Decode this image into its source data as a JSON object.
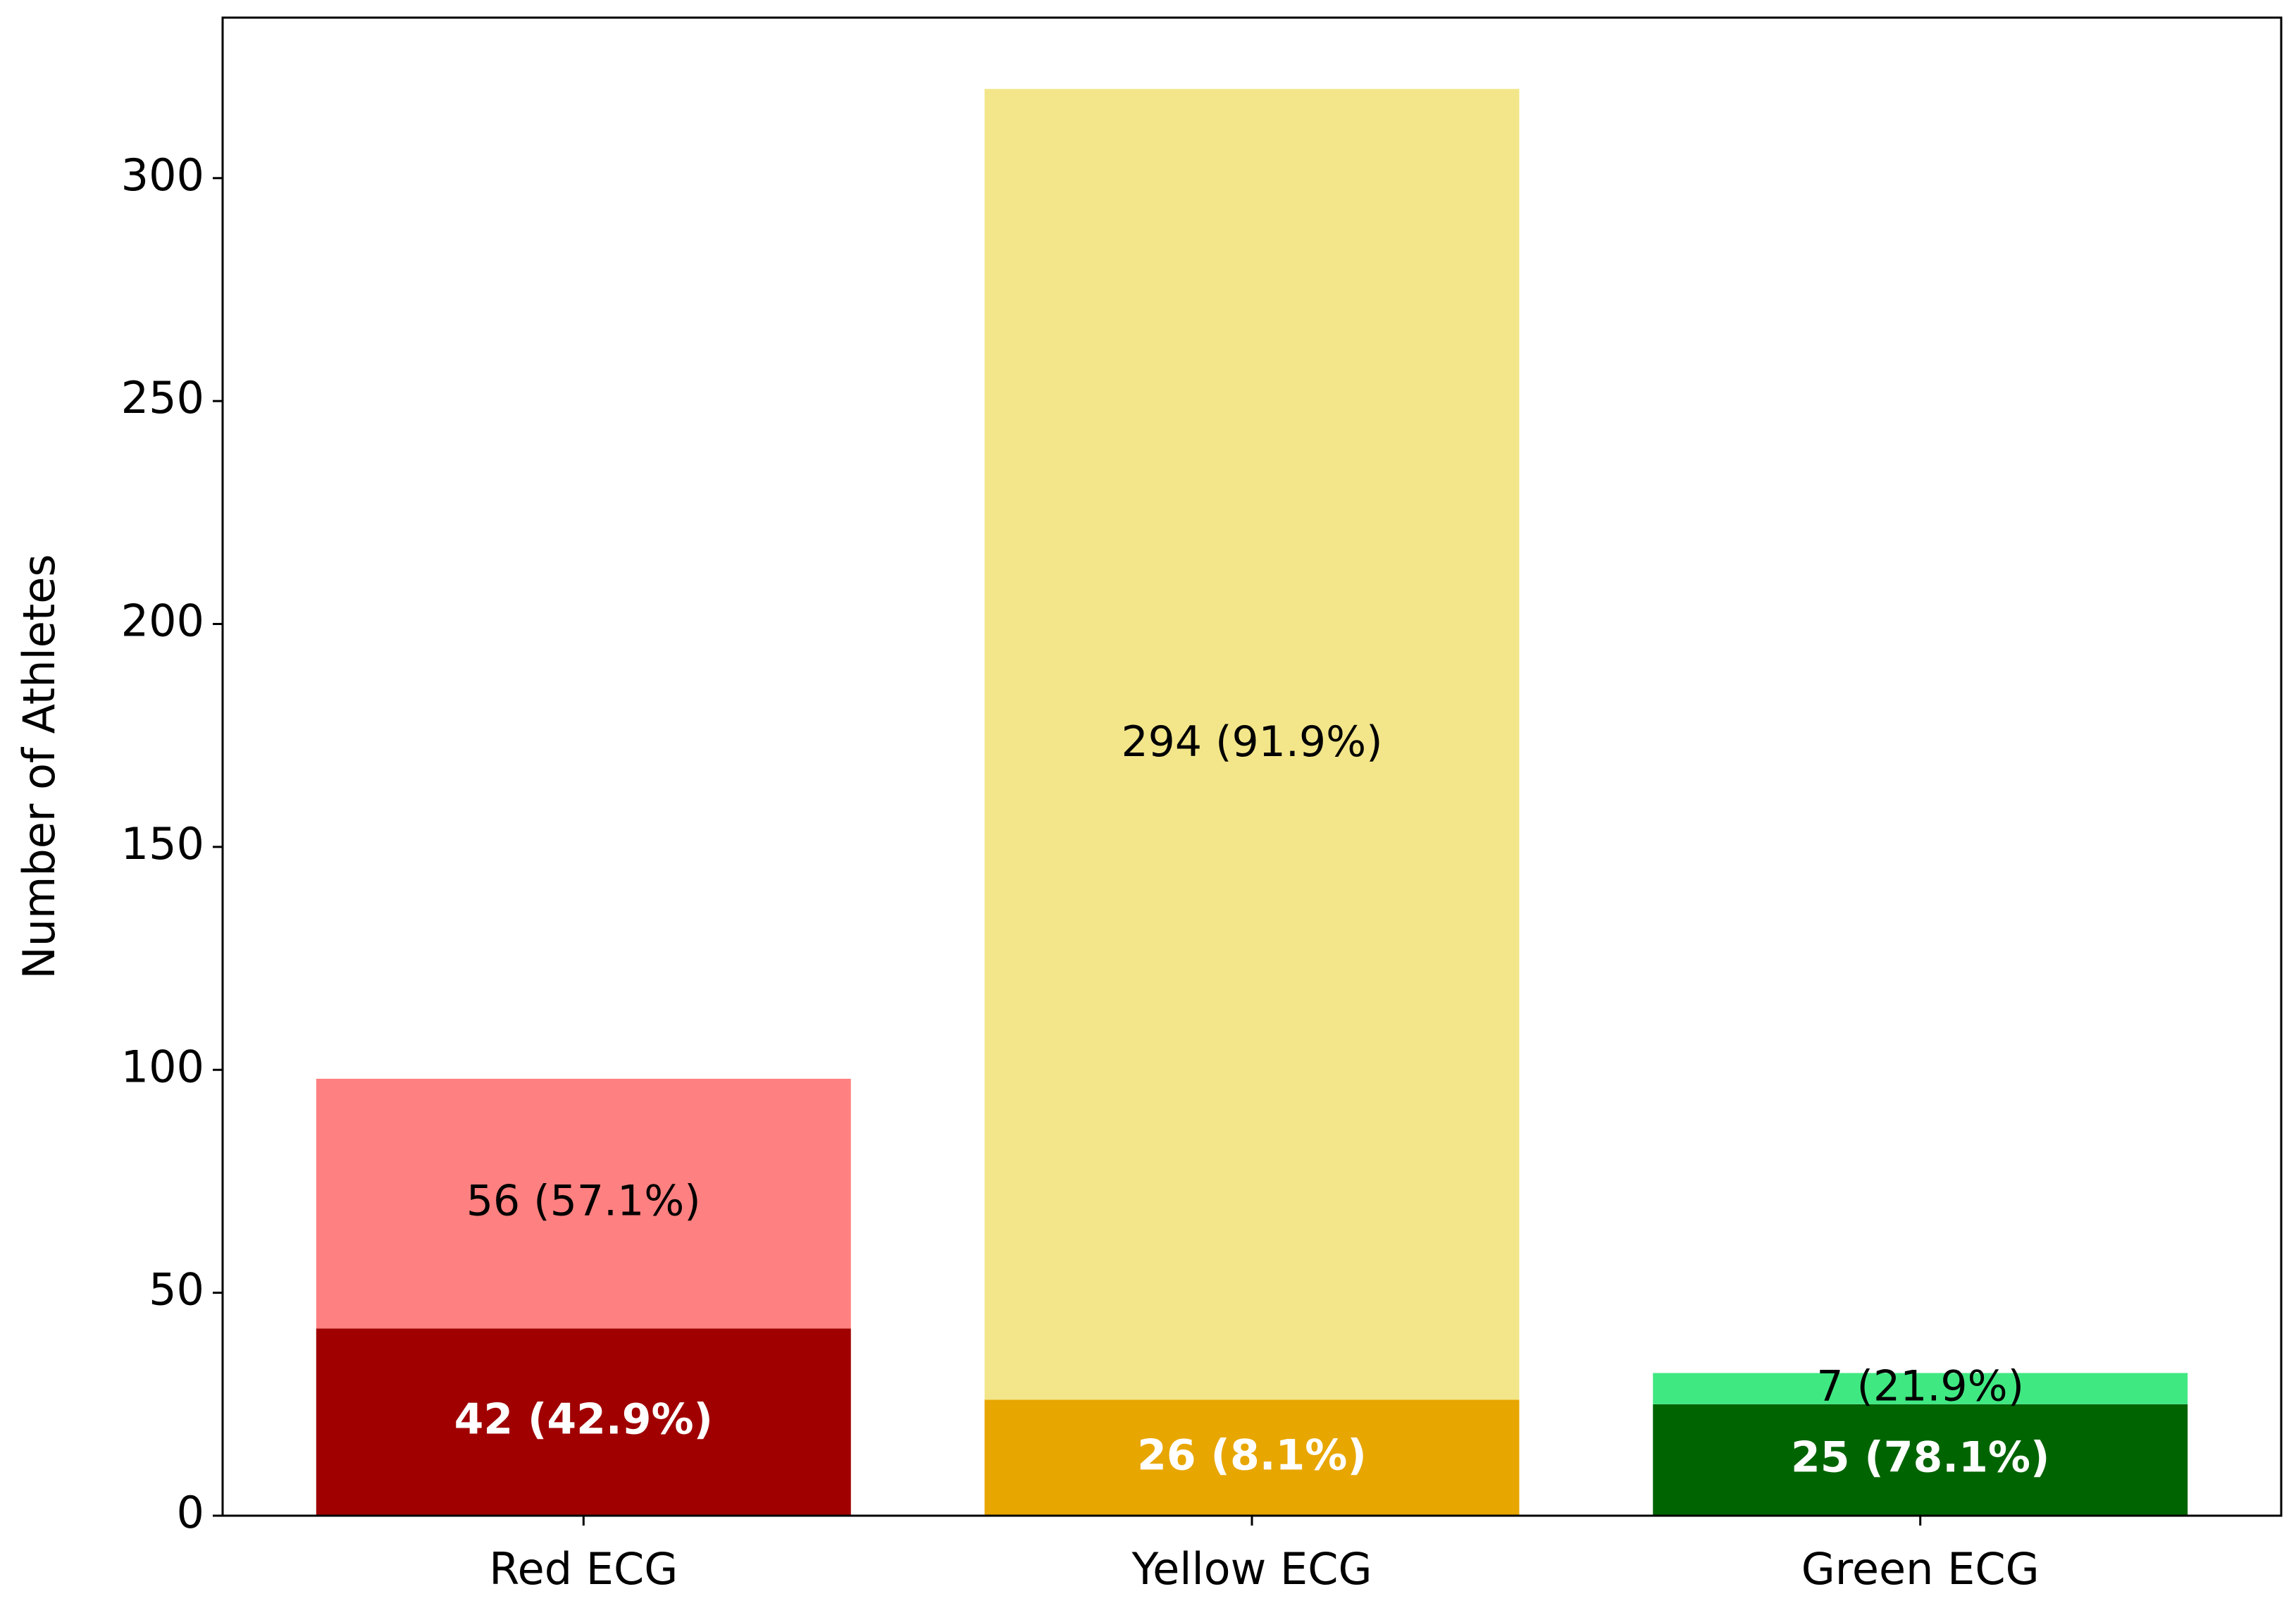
{
  "chart_data": {
    "type": "stacked_bar",
    "ylabel": "Number of Athletes",
    "categories": [
      "Red ECG",
      "Yellow ECG",
      "Green ECG"
    ],
    "series": [
      {
        "values": [
          42,
          26,
          25
        ],
        "colors": [
          "#a00000",
          "#e8a600",
          "#006400"
        ],
        "value_labels": [
          "42 (42.9%)",
          "26 (8.1%)",
          "25 (78.1%)"
        ]
      },
      {
        "values": [
          56,
          294,
          7
        ],
        "colors": [
          "#ff8080",
          "#f3e68a",
          "#40e882"
        ],
        "value_labels": [
          "56 (57.1%)",
          "294 (91.9%)",
          "7 (21.9%)"
        ]
      }
    ],
    "ylim": [
      0,
      336
    ],
    "yticks": [
      0,
      50,
      100,
      150,
      200,
      250,
      300
    ],
    "grid": false
  }
}
